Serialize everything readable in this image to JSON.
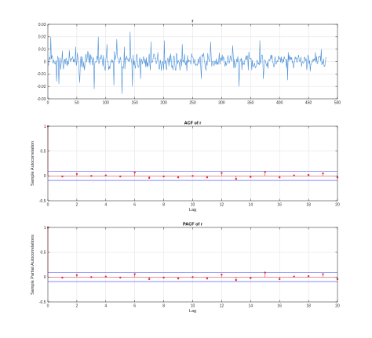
{
  "chart_data": [
    {
      "type": "line",
      "title": "r",
      "xlabel": "",
      "ylabel": "",
      "xlim": [
        0,
        500
      ],
      "ylim": [
        -0.03,
        0.03
      ],
      "xticks": [
        0,
        50,
        100,
        150,
        200,
        250,
        300,
        350,
        400,
        450,
        500
      ],
      "yticks": [
        -0.03,
        -0.02,
        -0.01,
        0,
        0.01,
        0.02,
        0.03
      ],
      "ytick_labels": [
        "-0.03",
        "-0.02",
        "-0.01",
        "0",
        "0.01",
        "0.02",
        "0.03"
      ],
      "grid": true,
      "line_color": "#4a90d9",
      "n_points": 480,
      "seed": 7,
      "amplitude": 0.0055,
      "spikes": [
        {
          "x": 5,
          "y": 0.02
        },
        {
          "x": 15,
          "y": -0.016
        },
        {
          "x": 19,
          "y": -0.018
        },
        {
          "x": 48,
          "y": 0.012
        },
        {
          "x": 55,
          "y": -0.017
        },
        {
          "x": 80,
          "y": -0.022
        },
        {
          "x": 87,
          "y": 0.02
        },
        {
          "x": 102,
          "y": 0.014
        },
        {
          "x": 114,
          "y": -0.019
        },
        {
          "x": 119,
          "y": 0.018
        },
        {
          "x": 128,
          "y": -0.026
        },
        {
          "x": 132,
          "y": 0.012
        },
        {
          "x": 142,
          "y": 0.024
        },
        {
          "x": 146,
          "y": -0.02
        },
        {
          "x": 160,
          "y": -0.014
        },
        {
          "x": 178,
          "y": 0.016
        },
        {
          "x": 201,
          "y": 0.017
        },
        {
          "x": 232,
          "y": 0.014
        },
        {
          "x": 265,
          "y": -0.014
        },
        {
          "x": 281,
          "y": 0.016
        },
        {
          "x": 319,
          "y": 0.013
        },
        {
          "x": 330,
          "y": -0.02
        },
        {
          "x": 366,
          "y": 0.017
        },
        {
          "x": 372,
          "y": -0.014
        },
        {
          "x": 414,
          "y": -0.015
        },
        {
          "x": 472,
          "y": 0.01
        }
      ]
    },
    {
      "type": "scatter",
      "title": "ACF of r",
      "xlabel": "Lag",
      "ylabel": "Sample Autocorrelation",
      "xlim": [
        0,
        20
      ],
      "ylim": [
        -0.5,
        1
      ],
      "xticks": [
        0,
        2,
        4,
        6,
        8,
        10,
        12,
        14,
        16,
        18,
        20
      ],
      "yticks": [
        -0.5,
        0,
        0.5,
        1
      ],
      "ytick_labels": [
        "-0.5",
        "0",
        "0.5",
        "1"
      ],
      "grid": true,
      "stem_color": "#e03030",
      "bound_color": "#4040ff",
      "bounds": [
        -0.09,
        0.09
      ],
      "lags": [
        0,
        1,
        2,
        3,
        4,
        5,
        6,
        7,
        8,
        9,
        10,
        11,
        12,
        13,
        14,
        15,
        16,
        17,
        18,
        19,
        20
      ],
      "values": [
        1,
        -0.01,
        0.04,
        0.0,
        0.01,
        -0.01,
        0.07,
        -0.04,
        -0.01,
        -0.03,
        0.0,
        -0.03,
        0.06,
        -0.06,
        -0.02,
        0.08,
        -0.03,
        0.01,
        0.02,
        0.05,
        -0.03
      ]
    },
    {
      "type": "scatter",
      "title": "PACF of r",
      "xlabel": "Lag",
      "ylabel": "Sample Partial Autocorrelations",
      "xlim": [
        0,
        20
      ],
      "ylim": [
        -0.5,
        1
      ],
      "xticks": [
        0,
        2,
        4,
        6,
        8,
        10,
        12,
        14,
        16,
        18,
        20
      ],
      "yticks": [
        -0.5,
        0,
        0.5,
        1
      ],
      "ytick_labels": [
        "-0.5",
        "0",
        "0.5",
        "1"
      ],
      "grid": true,
      "stem_color": "#e03030",
      "bound_color": "#4040ff",
      "bounds": [
        -0.09,
        0.09
      ],
      "lags": [
        0,
        1,
        2,
        3,
        4,
        5,
        6,
        7,
        8,
        9,
        10,
        11,
        12,
        13,
        14,
        15,
        16,
        17,
        18,
        19,
        20
      ],
      "values": [
        1,
        -0.01,
        0.04,
        0.0,
        0.01,
        -0.01,
        0.06,
        -0.04,
        -0.01,
        -0.03,
        0.0,
        -0.03,
        0.05,
        -0.06,
        -0.02,
        0.09,
        -0.04,
        0.01,
        0.02,
        0.06,
        -0.04
      ]
    }
  ]
}
